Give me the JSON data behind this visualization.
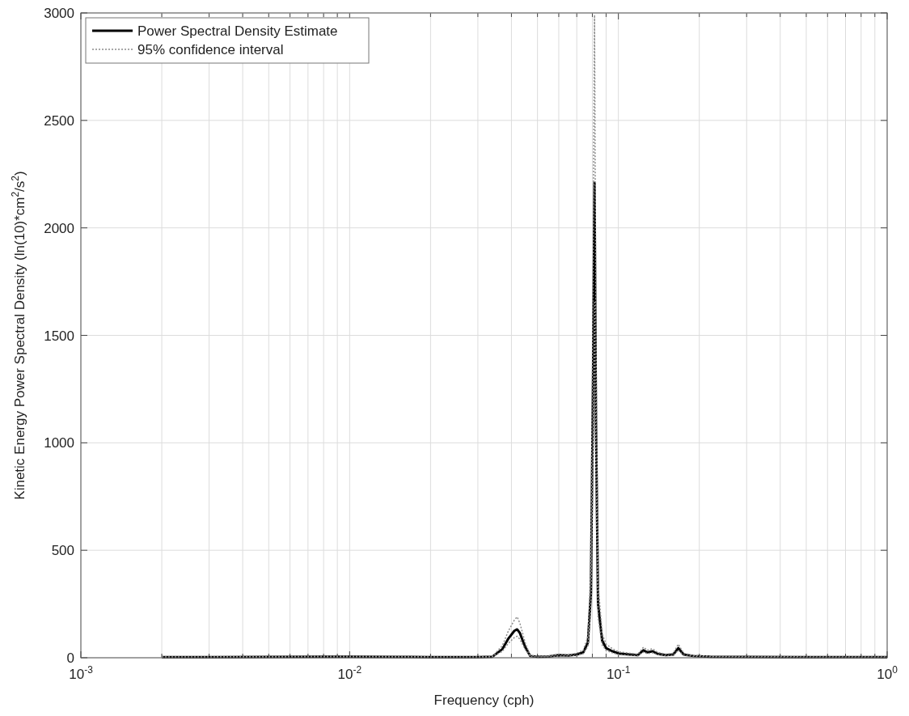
{
  "chart_data": {
    "type": "line",
    "xlabel": "Frequency (cph)",
    "ylabel": "Kinetic Energy Power Spectral Density (ln(10)*cm$^{2}$/s$^{2}$)",
    "log": "x",
    "grid": true,
    "legend": "top left",
    "xlim": [
      0.001,
      1
    ],
    "ylim": [
      0,
      3000
    ],
    "xticks": [
      {
        "value": 0.001,
        "label": "10$^{-3}$"
      },
      {
        "value": 0.002,
        "label": null
      },
      {
        "value": 0.003,
        "label": null
      },
      {
        "value": 0.004,
        "label": null
      },
      {
        "value": 0.005,
        "label": null
      },
      {
        "value": 0.006,
        "label": null
      },
      {
        "value": 0.007,
        "label": null
      },
      {
        "value": 0.008,
        "label": null
      },
      {
        "value": 0.009,
        "label": null
      },
      {
        "value": 0.01,
        "label": "10$^{-2}$"
      },
      {
        "value": 0.02,
        "label": null
      },
      {
        "value": 0.03,
        "label": null
      },
      {
        "value": 0.04,
        "label": null
      },
      {
        "value": 0.05,
        "label": null
      },
      {
        "value": 0.06,
        "label": null
      },
      {
        "value": 0.07,
        "label": null
      },
      {
        "value": 0.08,
        "label": null
      },
      {
        "value": 0.09,
        "label": null
      },
      {
        "value": 0.1,
        "label": "10$^{-1}$"
      },
      {
        "value": 0.2,
        "label": null
      },
      {
        "value": 0.3,
        "label": null
      },
      {
        "value": 0.4,
        "label": null
      },
      {
        "value": 0.5,
        "label": null
      },
      {
        "value": 0.6,
        "label": null
      },
      {
        "value": 0.7,
        "label": null
      },
      {
        "value": 0.8,
        "label": null
      },
      {
        "value": 0.9,
        "label": null
      },
      {
        "value": 1,
        "label": "10$^{0}$"
      }
    ],
    "yticks": [
      0,
      500,
      1000,
      1500,
      2000,
      2500,
      3000
    ],
    "x": [
      0.002,
      0.003,
      0.005,
      0.008,
      0.01,
      0.015,
      0.02,
      0.025,
      0.03,
      0.034,
      0.037,
      0.039,
      0.041,
      0.042,
      0.043,
      0.045,
      0.047,
      0.05,
      0.055,
      0.06,
      0.065,
      0.07,
      0.074,
      0.077,
      0.079,
      0.0805,
      0.0815,
      0.0825,
      0.084,
      0.087,
      0.09,
      0.095,
      0.1,
      0.11,
      0.118,
      0.124,
      0.128,
      0.134,
      0.14,
      0.15,
      0.16,
      0.167,
      0.175,
      0.19,
      0.22,
      0.3,
      0.5,
      0.7,
      1.0
    ],
    "series": [
      {
        "name": "Power Spectral Density Estimate",
        "color": "#000000",
        "line_style": "solid",
        "values": [
          3,
          3,
          4,
          5,
          5,
          4,
          3,
          3,
          3,
          5,
          40,
          90,
          125,
          132,
          115,
          50,
          8,
          5,
          6,
          12,
          10,
          15,
          25,
          70,
          300,
          1300,
          2210,
          1100,
          250,
          80,
          45,
          30,
          20,
          15,
          12,
          35,
          25,
          30,
          18,
          12,
          15,
          45,
          15,
          8,
          5,
          4,
          3,
          3,
          3
        ]
      },
      {
        "name": "95% confidence interval",
        "color": "#8c8c8c",
        "line_style": "dotted",
        "values": [
          4,
          4,
          6,
          7,
          7,
          6,
          4,
          4,
          4,
          7,
          56,
          126,
          175,
          190,
          161,
          70,
          11,
          7,
          8,
          17,
          14,
          21,
          35,
          98,
          420,
          1820,
          2990,
          1540,
          350,
          112,
          63,
          42,
          28,
          21,
          17,
          49,
          35,
          42,
          25,
          17,
          21,
          63,
          21,
          11,
          7,
          6,
          4,
          4,
          4
        ]
      },
      {
        "color": "#8c8c8c",
        "line_style": "dotted",
        "values": [
          2,
          2,
          3,
          4,
          4,
          3,
          2,
          2,
          2,
          4,
          30,
          68,
          94,
          100,
          86,
          38,
          6,
          4,
          5,
          9,
          8,
          11,
          19,
          53,
          225,
          975,
          1660,
          825,
          188,
          60,
          34,
          23,
          15,
          11,
          9,
          26,
          19,
          23,
          14,
          9,
          11,
          34,
          11,
          6,
          4,
          3,
          2,
          2,
          2
        ]
      }
    ]
  }
}
